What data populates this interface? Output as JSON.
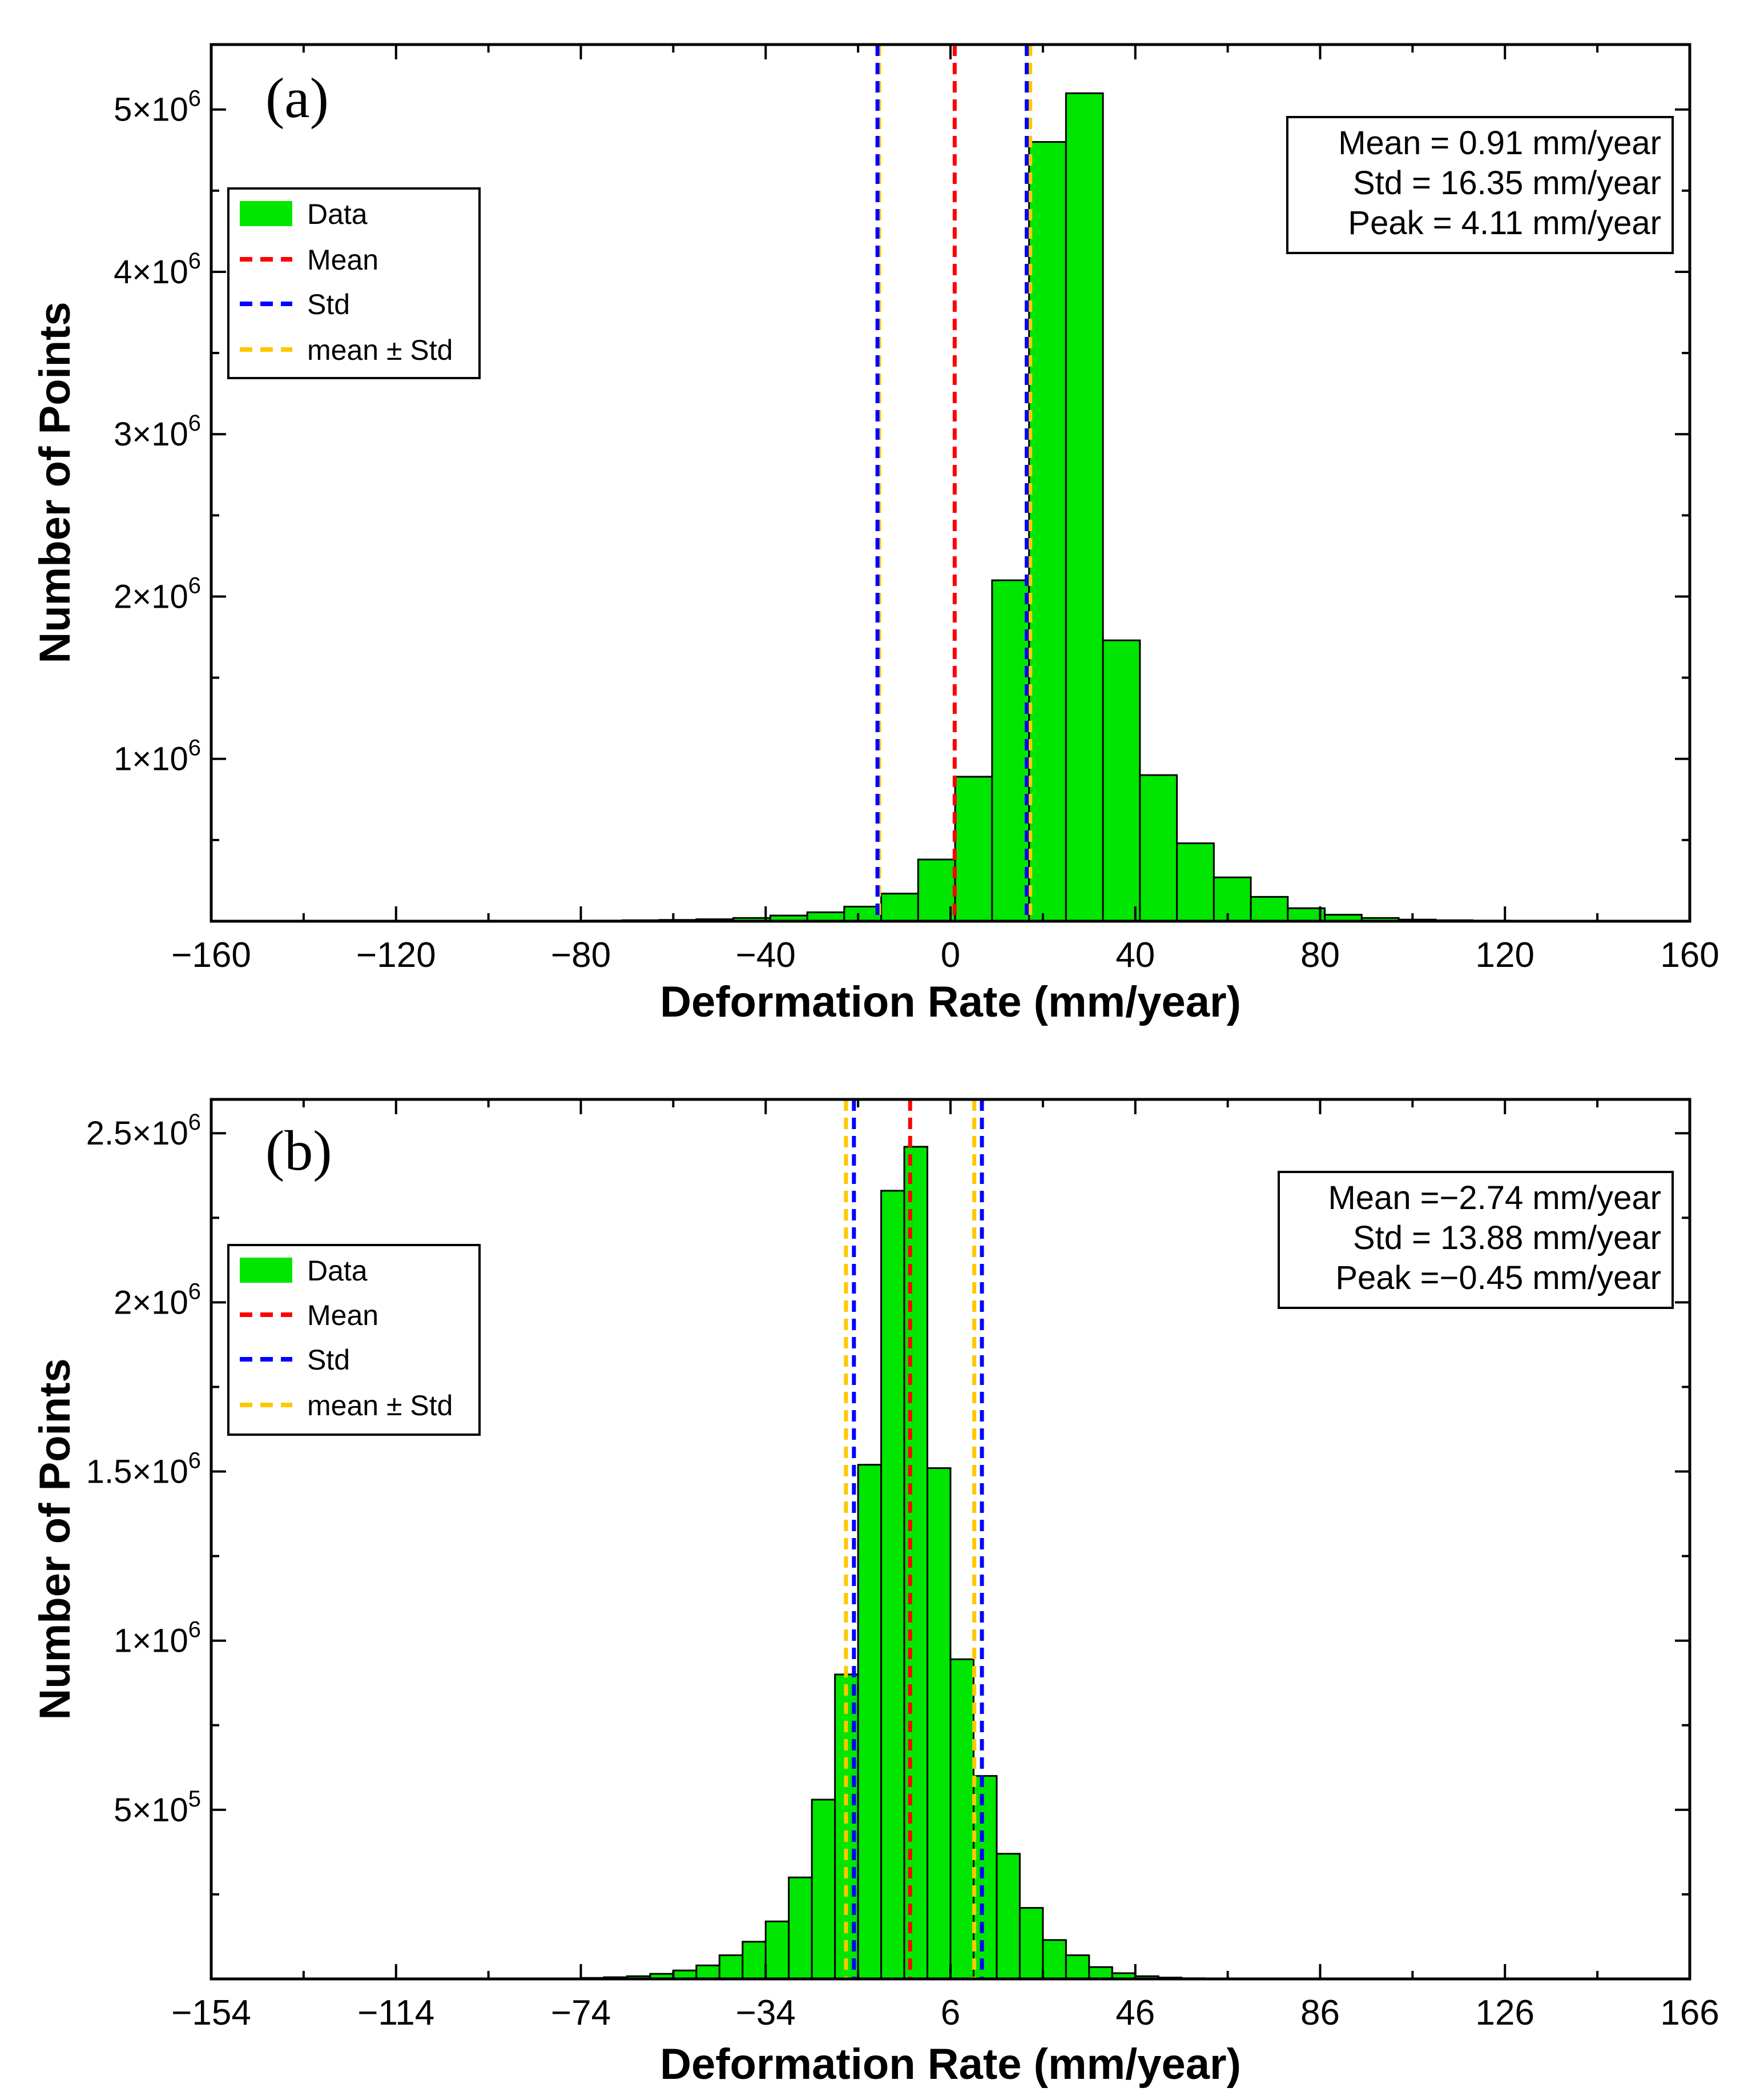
{
  "chart_data": [
    {
      "type": "bar",
      "panel_label": "(a)",
      "xlabel": "Deformation Rate (mm/year)",
      "ylabel": "Number of Points",
      "xlim": [
        -160,
        160
      ],
      "ylim": [
        0,
        5400000
      ],
      "x_tick_values": [
        -160,
        -120,
        -80,
        -40,
        0,
        40,
        80,
        120,
        160
      ],
      "x_tick_labels": [
        "−160",
        "−120",
        "−80",
        "−40",
        "0",
        "40",
        "80",
        "120",
        "160"
      ],
      "y_tick_values": [
        1000000,
        2000000,
        3000000,
        4000000,
        5000000
      ],
      "y_tick_labels": [
        {
          "mantissa": "1×10",
          "exp": "6"
        },
        {
          "mantissa": "2×10",
          "exp": "6"
        },
        {
          "mantissa": "3×10",
          "exp": "6"
        },
        {
          "mantissa": "4×10",
          "exp": "6"
        },
        {
          "mantissa": "5×10",
          "exp": "6"
        }
      ],
      "bin_edges_start": -87,
      "bin_width": 8,
      "counts": [
        2000,
        4000,
        6000,
        8000,
        12000,
        20000,
        35000,
        55000,
        90000,
        170000,
        380000,
        890000,
        2100000,
        4800000,
        5100000,
        1730000,
        900000,
        480000,
        270000,
        150000,
        80000,
        40000,
        20000,
        10000,
        6000,
        4000,
        2000
      ],
      "lines": {
        "mean": 0.91,
        "std_lower": -15.8,
        "std_upper": 16.5,
        "band_lower": -15.44,
        "band_upper": 17.26
      },
      "legend": {
        "data": "Data",
        "mean": "Mean",
        "std": "Std",
        "band": "mean ± Std"
      },
      "stats": [
        "Mean = 0.91 mm/year",
        "Std = 16.35 mm/year",
        "Peak = 4.11 mm/year"
      ],
      "colors": {
        "bars": "#00e600",
        "mean": "#ff0000",
        "std": "#0000ff",
        "band": "#ffc800"
      }
    },
    {
      "type": "bar",
      "panel_label": "(b)",
      "xlabel": "Deformation Rate (mm/year)",
      "ylabel": "Number of Points",
      "xlim": [
        -154,
        166
      ],
      "ylim": [
        0,
        2600000
      ],
      "x_tick_values": [
        -154,
        -114,
        -74,
        -34,
        6,
        46,
        86,
        126,
        166
      ],
      "x_tick_labels": [
        "−154",
        "−114",
        "−74",
        "−34",
        "6",
        "46",
        "86",
        "126",
        "166"
      ],
      "y_tick_values": [
        500000,
        1000000,
        1500000,
        2000000,
        2500000
      ],
      "y_tick_labels": [
        {
          "mantissa": "5×10",
          "exp": "5"
        },
        {
          "mantissa": "1×10",
          "exp": "6"
        },
        {
          "mantissa": "1.5×10",
          "exp": "6"
        },
        {
          "mantissa": "2×10",
          "exp": "6"
        },
        {
          "mantissa": "2.5×10",
          "exp": "6"
        }
      ],
      "bin_edges_start": -79,
      "bin_width": 5,
      "counts": [
        1000,
        3000,
        5000,
        8000,
        15000,
        25000,
        40000,
        70000,
        110000,
        170000,
        300000,
        530000,
        900000,
        1520000,
        2330000,
        2460000,
        1510000,
        945000,
        600000,
        370000,
        210000,
        115000,
        70000,
        35000,
        17000,
        8000,
        4000,
        2000
      ],
      "lines": {
        "mean": -2.74,
        "std_lower": -14.9,
        "std_upper": 12.8,
        "band_lower": -16.62,
        "band_upper": 11.14
      },
      "legend": {
        "data": "Data",
        "mean": "Mean",
        "std": "Std",
        "band": "mean ± Std"
      },
      "stats": [
        "Mean =−2.74 mm/year",
        "Std = 13.88 mm/year",
        "Peak =−0.45 mm/year"
      ],
      "colors": {
        "bars": "#00e600",
        "mean": "#ff0000",
        "std": "#0000ff",
        "band": "#ffc800"
      }
    }
  ]
}
